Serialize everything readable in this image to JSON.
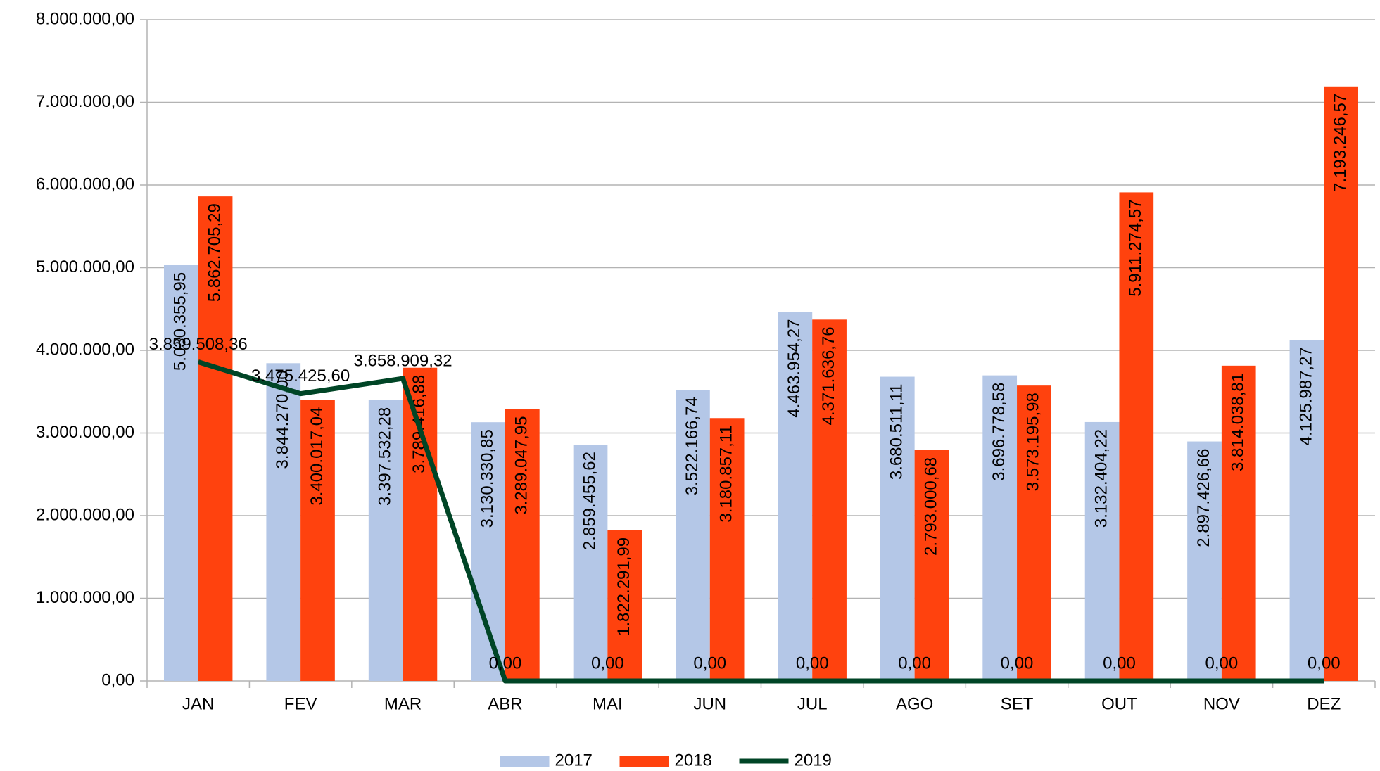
{
  "chart_data": {
    "type": "bar",
    "categories": [
      "JAN",
      "FEV",
      "MAR",
      "ABR",
      "MAI",
      "JUN",
      "JUL",
      "AGO",
      "SET",
      "OUT",
      "NOV",
      "DEZ"
    ],
    "series": [
      {
        "name": "2017",
        "type": "bar",
        "color": "#b4c7e7",
        "values": [
          5030355.95,
          3844270.0,
          3397532.28,
          3130330.85,
          2859455.62,
          3522166.74,
          4463954.27,
          3680511.11,
          3696778.58,
          3132404.22,
          2897426.66,
          4125987.27
        ],
        "value_labels": [
          "5.030.355,95",
          "3.844.270,00",
          "3.397.532,28",
          "3.130.330,85",
          "2.859.455,62",
          "3.522.166,74",
          "4.463.954,27",
          "3.680.511,11",
          "3.696.778,58",
          "3.132.404,22",
          "2.897.426,66",
          "4.125.987,27"
        ]
      },
      {
        "name": "2018",
        "type": "bar",
        "color": "#ff420e",
        "values": [
          5862705.29,
          3400017.04,
          3789416.88,
          3289047.95,
          1822291.99,
          3180857.11,
          4371636.76,
          2793000.68,
          3573195.98,
          5911274.57,
          3814038.81,
          7193246.57
        ],
        "value_labels": [
          "5.862.705,29",
          "3.400.017,04",
          "3.789.416,88",
          "3.289.047,95",
          "1.822.291,99",
          "3.180.857,11",
          "4.371.636,76",
          "2.793.000,68",
          "3.573.195,98",
          "5.911.274,57",
          "3.814.038,81",
          "7.193.246,57"
        ]
      },
      {
        "name": "2019",
        "type": "line",
        "color": "#004526",
        "values": [
          3859508.36,
          3475425.6,
          3658909.32,
          0,
          0,
          0,
          0,
          0,
          0,
          0,
          0,
          0
        ],
        "value_labels": [
          "3.859.508,36",
          "3.475.425,60",
          "3.658.909,32",
          "0,00",
          "0,00",
          "0,00",
          "0,00",
          "0,00",
          "0,00",
          "0,00",
          "0,00",
          "0,00"
        ]
      }
    ],
    "ylim": [
      0,
      8000000
    ],
    "yticks": [
      {
        "value": 0,
        "label": "0,00"
      },
      {
        "value": 1000000,
        "label": "1.000.000,00"
      },
      {
        "value": 2000000,
        "label": "2.000.000,00"
      },
      {
        "value": 3000000,
        "label": "3.000.000,00"
      },
      {
        "value": 4000000,
        "label": "4.000.000,00"
      },
      {
        "value": 5000000,
        "label": "5.000.000,00"
      },
      {
        "value": 6000000,
        "label": "6.000.000,00"
      },
      {
        "value": 7000000,
        "label": "7.000.000,00"
      },
      {
        "value": 8000000,
        "label": "8.000.000,00"
      }
    ],
    "grid": true,
    "legend": "bottom"
  }
}
